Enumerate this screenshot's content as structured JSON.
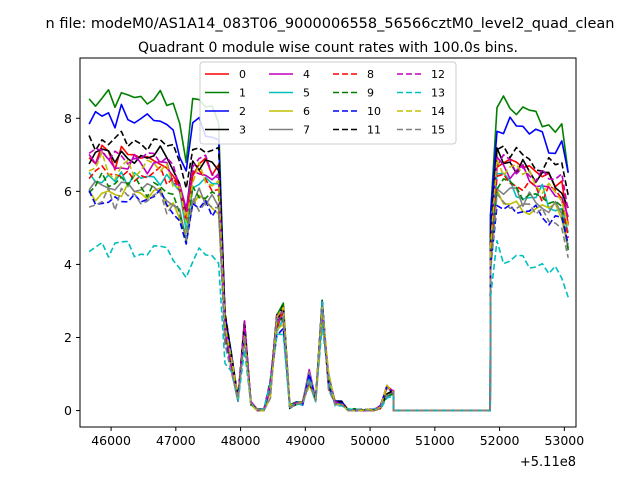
{
  "chart_data": {
    "type": "line",
    "suptitle": "n file: modeM0/AS1A14_083T06_9000006558_56566cztM0_level2_quad_clean",
    "title": "Quadrant 0 module wise count rates with 100.0s bins.",
    "xlabel": "",
    "ylabel": "",
    "x_offset_label": "+5.11e8",
    "xlim": [
      45520,
      53180
    ],
    "ylim": [
      -0.45,
      9.65
    ],
    "xticks": [
      46000,
      47000,
      48000,
      49000,
      50000,
      51000,
      52000,
      53000
    ],
    "xtick_labels": [
      "46000",
      "47000",
      "48000",
      "49000",
      "50000",
      "51000",
      "52000",
      "53000"
    ],
    "yticks": [
      0,
      2,
      4,
      6,
      8
    ],
    "ytick_labels": [
      "0",
      "2",
      "4",
      "6",
      "8"
    ],
    "legend_position": "top-center",
    "gap_start": 50360,
    "gap_end": 51855,
    "seg1_times": [
      45660,
      45760,
      45860,
      45960,
      46060,
      46160,
      46260,
      46360,
      46460,
      46560,
      46660,
      46760,
      46860,
      46960,
      47060,
      47160,
      47260,
      47360,
      47460,
      47560,
      47660
    ],
    "descent_times": [
      47760,
      47860,
      47960,
      48060,
      48160,
      48260,
      48360,
      48460,
      48560,
      48660,
      48760,
      48860,
      48960,
      49060,
      49160,
      49260,
      49360,
      49460,
      49560,
      49660,
      49760,
      49860,
      49960,
      50060,
      50160,
      50260,
      50360
    ],
    "descent_base": [
      2.1,
      1.3,
      0.3,
      2.2,
      0.2,
      0.0,
      0.0,
      0.6,
      2.4,
      2.6,
      0.1,
      0.2,
      0.2,
      0.9,
      0.3,
      2.8,
      0.8,
      0.2,
      0.2,
      0.0,
      0.0,
      0.0,
      0.0,
      0.0,
      0.1,
      0.6,
      0.5
    ],
    "seg2_times": [
      51860,
      51960,
      52060,
      52160,
      52260,
      52360,
      52460,
      52560,
      52660,
      52760,
      52860,
      52960,
      53060
    ],
    "series": [
      {
        "name": "0",
        "color": "#ff0000",
        "dash": "solid",
        "level": 6.9,
        "scale": 1.0,
        "seed": 1
      },
      {
        "name": "1",
        "color": "#008000",
        "dash": "solid",
        "level": 8.6,
        "scale": 1.12,
        "seed": 2
      },
      {
        "name": "2",
        "color": "#0000ff",
        "dash": "solid",
        "level": 8.0,
        "scale": 1.08,
        "seed": 3
      },
      {
        "name": "3",
        "color": "#000000",
        "dash": "solid",
        "level": 7.0,
        "scale": 1.05,
        "seed": 4
      },
      {
        "name": "4",
        "color": "#bf00bf",
        "dash": "solid",
        "level": 6.8,
        "scale": 1.0,
        "seed": 5
      },
      {
        "name": "5",
        "color": "#00bfbf",
        "dash": "solid",
        "level": 6.4,
        "scale": 0.98,
        "seed": 6
      },
      {
        "name": "6",
        "color": "#bfbf00",
        "dash": "solid",
        "level": 6.0,
        "scale": 0.97,
        "seed": 7
      },
      {
        "name": "7",
        "color": "#808080",
        "dash": "solid",
        "level": 6.1,
        "scale": 0.98,
        "seed": 8
      },
      {
        "name": "8",
        "color": "#ff0000",
        "dash": "dashed",
        "level": 6.5,
        "scale": 1.0,
        "seed": 9
      },
      {
        "name": "9",
        "color": "#008000",
        "dash": "dashed",
        "level": 6.2,
        "scale": 0.98,
        "seed": 10
      },
      {
        "name": "10",
        "color": "#0000ff",
        "dash": "dashed",
        "level": 5.8,
        "scale": 0.95,
        "seed": 11
      },
      {
        "name": "11",
        "color": "#000000",
        "dash": "dashed",
        "level": 7.4,
        "scale": 1.06,
        "seed": 12
      },
      {
        "name": "12",
        "color": "#bf00bf",
        "dash": "dashed",
        "level": 7.0,
        "scale": 1.02,
        "seed": 13
      },
      {
        "name": "13",
        "color": "#00bfbf",
        "dash": "dashed",
        "level": 4.4,
        "scale": 0.85,
        "seed": 14
      },
      {
        "name": "14",
        "color": "#bfbf00",
        "dash": "dashed",
        "level": 6.7,
        "scale": 1.0,
        "seed": 15
      },
      {
        "name": "15",
        "color": "#808080",
        "dash": "dashed",
        "level": 5.8,
        "scale": 0.95,
        "seed": 16
      }
    ]
  }
}
